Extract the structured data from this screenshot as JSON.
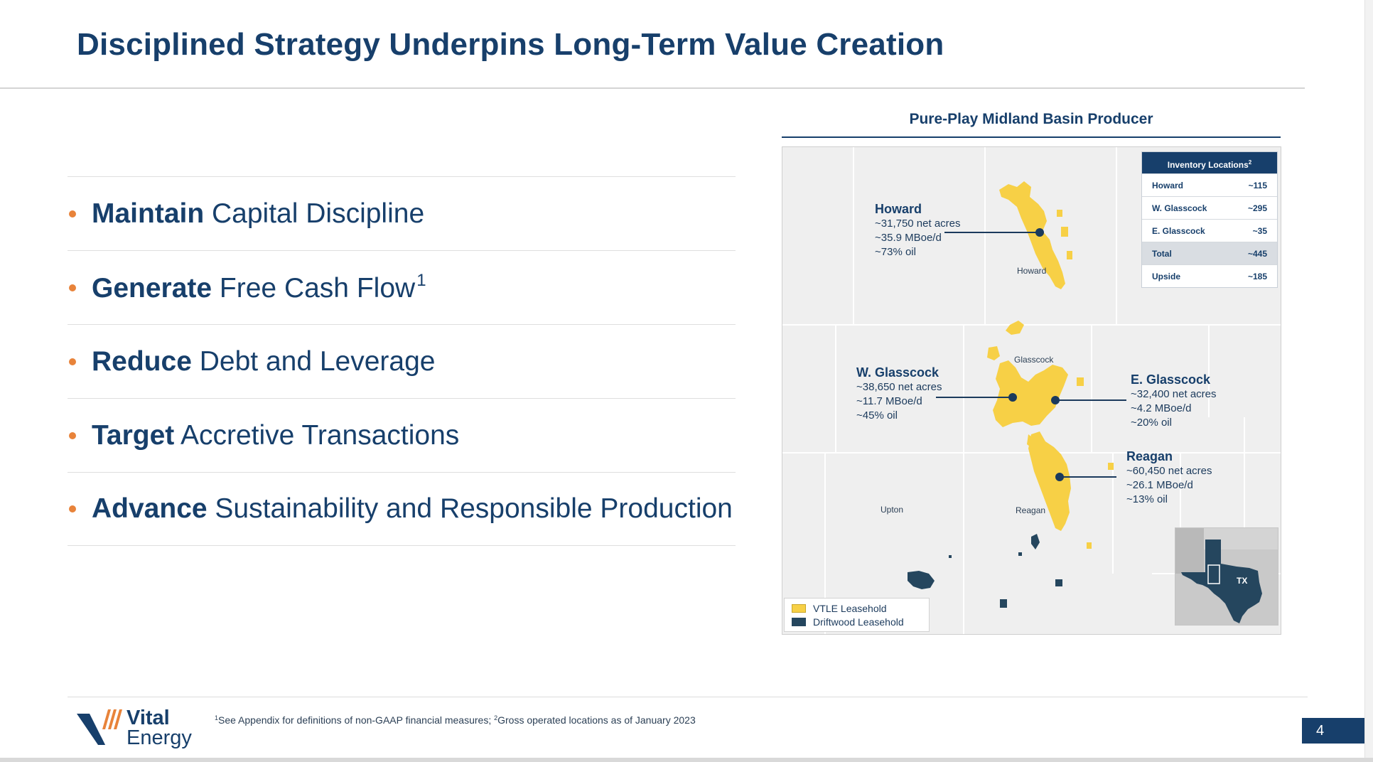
{
  "title": "Disciplined Strategy Underpins Long-Term Value Creation",
  "bullets": [
    {
      "bold": "Maintain",
      "rest": " Capital Discipline",
      "sup": ""
    },
    {
      "bold": "Generate",
      "rest": " Free Cash Flow",
      "sup": "1"
    },
    {
      "bold": "Reduce",
      "rest": " Debt and Leverage",
      "sup": ""
    },
    {
      "bold": "Target",
      "rest": " Accretive Transactions",
      "sup": ""
    },
    {
      "bold": "Advance",
      "rest": " Sustainability and Responsible Production",
      "sup": ""
    }
  ],
  "map": {
    "title": "Pure-Play Midland Basin Producer",
    "labels": {
      "howard": {
        "name": "Howard",
        "acres": "~31,750 net acres",
        "prod": "~35.9 MBoe/d",
        "oil": "~73% oil"
      },
      "wglasscock": {
        "name": "W. Glasscock",
        "acres": "~38,650 net acres",
        "prod": "~11.7 MBoe/d",
        "oil": "~45% oil"
      },
      "eglasscock": {
        "name": "E. Glasscock",
        "acres": "~32,400 net acres",
        "prod": "~4.2 MBoe/d",
        "oil": "~20% oil"
      },
      "reagan": {
        "name": "Reagan",
        "acres": "~60,450 net acres",
        "prod": "~26.1 MBoe/d",
        "oil": "~13% oil"
      }
    },
    "counties": {
      "howard": "Howard",
      "glasscock": "Glasscock",
      "upton": "Upton",
      "reagan": "Reagan"
    },
    "inventory": {
      "header": "Inventory Locations",
      "header_sup": "2",
      "rows": [
        {
          "label": "Howard",
          "value": "~115"
        },
        {
          "label": "W. Glasscock",
          "value": "~295"
        },
        {
          "label": "E. Glasscock",
          "value": "~35"
        },
        {
          "label": "Total",
          "value": "~445"
        },
        {
          "label": "Upside",
          "value": "~185"
        }
      ]
    },
    "legend": {
      "vtle": "VTLE Leasehold",
      "driftwood": "Driftwood Leasehold"
    },
    "inset_label": "TX",
    "colors": {
      "vtle": "#f7d046",
      "driftwood": "#25465e",
      "navy": "#173f6b",
      "accent": "#e8833a"
    }
  },
  "logo": {
    "line1": "Vital",
    "line2": "Energy"
  },
  "footnote": {
    "sup1": "1",
    "text1": "See Appendix for definitions of non-GAAP financial measures; ",
    "sup2": "2",
    "text2": "Gross operated locations as of January 2023"
  },
  "page_number": "4"
}
